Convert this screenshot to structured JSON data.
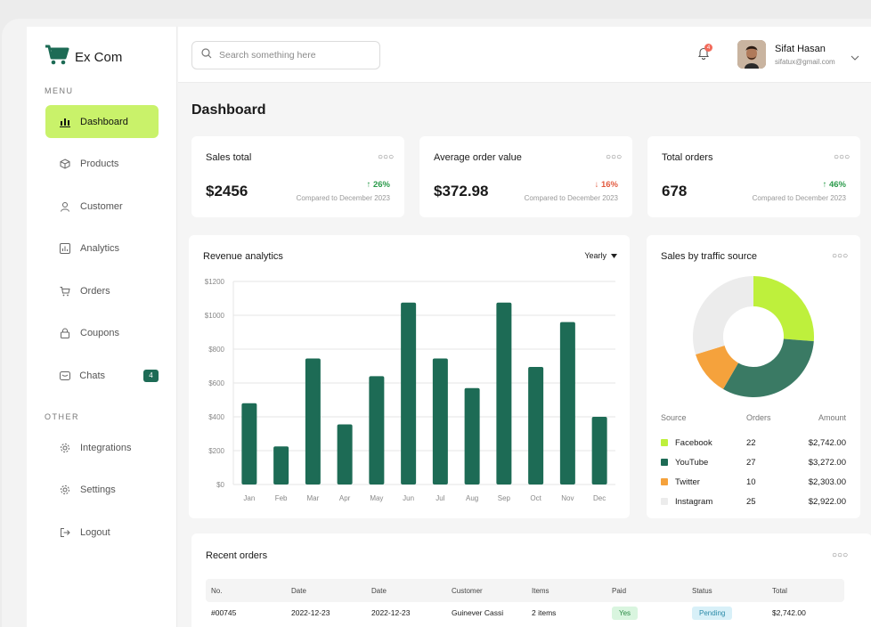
{
  "brand": {
    "name": "Ex Com"
  },
  "menu_label": "MENU",
  "other_label": "OTHER",
  "nav": {
    "items": [
      {
        "label": "Dashboard",
        "icon": "bar-chart-icon",
        "active": true
      },
      {
        "label": "Products",
        "icon": "box-icon"
      },
      {
        "label": "Customer",
        "icon": "user-icon"
      },
      {
        "label": "Analytics",
        "icon": "analytics-icon"
      },
      {
        "label": "Orders",
        "icon": "cart-icon"
      },
      {
        "label": "Coupons",
        "icon": "lock-icon"
      },
      {
        "label": "Chats",
        "icon": "chat-icon",
        "badge": "4"
      }
    ],
    "other": [
      {
        "label": "Integrations",
        "icon": "gear-icon"
      },
      {
        "label": "Settings",
        "icon": "gear-icon"
      },
      {
        "label": "Logout",
        "icon": "logout-icon"
      }
    ]
  },
  "search": {
    "placeholder": "Search something here"
  },
  "notifications": {
    "count": "4"
  },
  "user": {
    "name": "Sifat Hasan",
    "email": "sifatux@gmail.com"
  },
  "page_title": "Dashboard",
  "kpis": [
    {
      "title": "Sales total",
      "value": "$2456",
      "change": "26%",
      "direction": "up",
      "compare": "Compared to December 2023"
    },
    {
      "title": "Average order value",
      "value": "$372.98",
      "change": "16%",
      "direction": "down",
      "compare": "Compared to December 2023"
    },
    {
      "title": "Total orders",
      "value": "678",
      "change": "46%",
      "direction": "up",
      "compare": "Compared to December 2023"
    }
  ],
  "revenue": {
    "title": "Revenue analytics",
    "period": "Yearly"
  },
  "chart_data": [
    {
      "type": "bar",
      "title": "Revenue analytics",
      "categories": [
        "Jan",
        "Feb",
        "Mar",
        "Apr",
        "May",
        "Jun",
        "Jul",
        "Aug",
        "Sep",
        "Oct",
        "Nov",
        "Dec"
      ],
      "values": [
        480,
        225,
        745,
        355,
        640,
        1075,
        745,
        570,
        1075,
        695,
        960,
        400
      ],
      "ylim": [
        0,
        1200
      ],
      "yticks": [
        "$0",
        "$200",
        "$400",
        "$600",
        "$800",
        "$1000",
        "$1200"
      ],
      "grid": true,
      "color": "#1d6b55"
    },
    {
      "type": "pie",
      "title": "Sales by traffic source",
      "categories": [
        "Facebook",
        "YouTube",
        "Twitter",
        "Instagram"
      ],
      "values": [
        22,
        27,
        10,
        25
      ],
      "colors": [
        "#bef03c",
        "#3a7a64",
        "#f5a23c",
        "#ececec"
      ]
    }
  ],
  "traffic": {
    "title": "Sales by traffic source",
    "headers": [
      "Source",
      "Orders",
      "Amount"
    ],
    "rows": [
      {
        "source": "Facebook",
        "orders": "22",
        "amount": "$2,742.00",
        "color": "#bef03c"
      },
      {
        "source": "YouTube",
        "orders": "27",
        "amount": "$3,272.00",
        "color": "#1d6b55"
      },
      {
        "source": "Twitter",
        "orders": "10",
        "amount": "$2,303.00",
        "color": "#f5a23c"
      },
      {
        "source": "Instagram",
        "orders": "25",
        "amount": "$2,922.00",
        "color": "#ececec"
      }
    ]
  },
  "recent_orders": {
    "title": "Recent orders",
    "headers": [
      "No.",
      "Date",
      "Date",
      "Customer",
      "Items",
      "Paid",
      "Status",
      "Total"
    ],
    "rows": [
      {
        "no": "#00745",
        "date1": "2022-12-23",
        "date2": "2022-12-23",
        "customer": "Guinever Cassi",
        "items": "2 items",
        "paid": "Yes",
        "status": "Pending",
        "total": "$2,742.00"
      }
    ]
  }
}
